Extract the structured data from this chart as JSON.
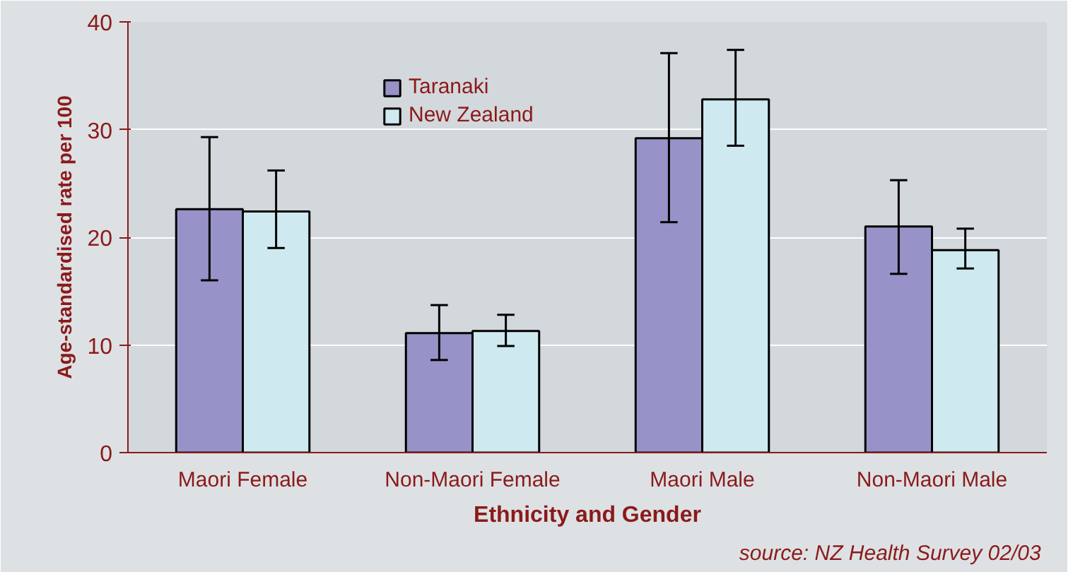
{
  "chart_data": {
    "type": "bar",
    "xlabel": "Ethnicity and Gender",
    "ylabel": "Age-standardised rate per 100",
    "categories": [
      "Maori Female",
      "Non-Maori Female",
      "Maori Male",
      "Non-Maori Male"
    ],
    "series": [
      {
        "name": "Taranaki",
        "color": "#9793c8",
        "values": [
          22.6,
          11.1,
          29.2,
          21.0
        ],
        "errors": [
          [
            16.0,
            29.3
          ],
          [
            8.6,
            13.7
          ],
          [
            21.4,
            37.1
          ],
          [
            16.6,
            25.3
          ]
        ]
      },
      {
        "name": "New Zealand",
        "color": "#ceeaf0",
        "values": [
          22.4,
          11.3,
          32.8,
          18.8
        ],
        "errors": [
          [
            19.0,
            26.2
          ],
          [
            9.9,
            12.8
          ],
          [
            28.5,
            37.4
          ],
          [
            17.1,
            20.8
          ]
        ]
      }
    ],
    "ylim": [
      0,
      40
    ],
    "yticks": [
      0,
      10,
      20,
      30,
      40
    ],
    "grid": "y",
    "legend": "top left",
    "annotations": [
      "source:  NZ Health Survey 02/03"
    ]
  }
}
